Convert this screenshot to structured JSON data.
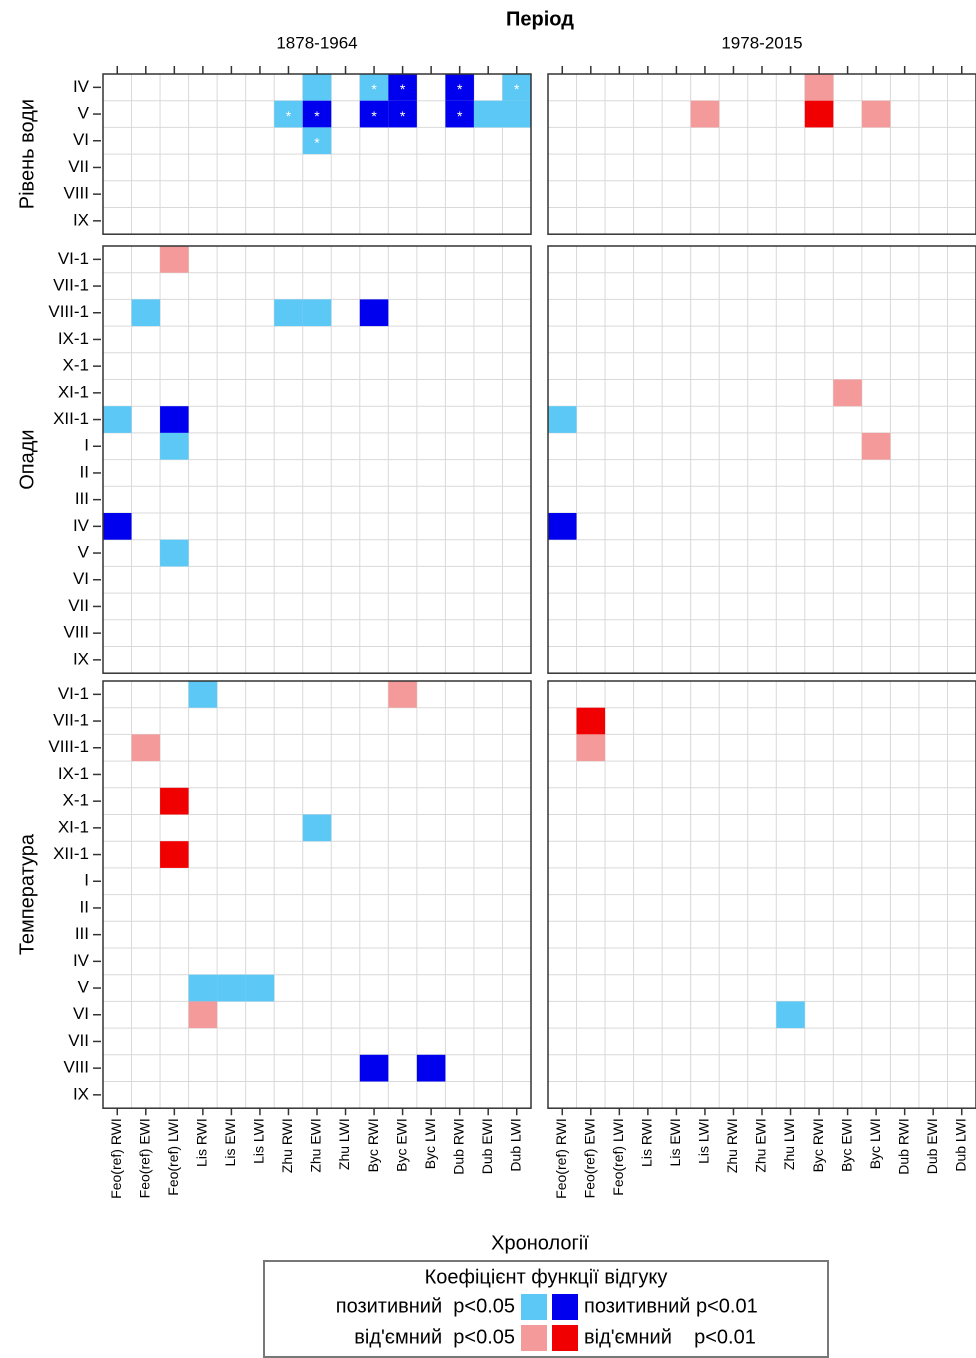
{
  "chart_data": {
    "type": "tile",
    "title": "Період",
    "x_label": "Хронології",
    "periods": [
      "1878-1964",
      "1978-2015"
    ],
    "columns": [
      "Feo(ref) RWI",
      "Feo(ref) EWI",
      "Feo(ref) LWI",
      "Lis RWI",
      "Lis EWI",
      "Lis LWI",
      "Zhu RWI",
      "Zhu EWI",
      "Zhu LWI",
      "Byc RWI",
      "Byc EWI",
      "Byc LWI",
      "Dub RWI",
      "Dub EWI",
      "Dub LWI"
    ],
    "grid": true,
    "facets": [
      {
        "name": "Рівень води",
        "rows": [
          "IV",
          "V",
          "VI",
          "VII",
          "VIII",
          "IX"
        ],
        "tiles": [
          [
            {
              "row": "IV",
              "col": "Zhu EWI",
              "color": "#5bc8f5"
            },
            {
              "row": "IV",
              "col": "Byc RWI",
              "color": "#5bc8f5",
              "star": "*"
            },
            {
              "row": "IV",
              "col": "Byc EWI",
              "color": "#0000ee",
              "star": "*"
            },
            {
              "row": "IV",
              "col": "Dub RWI",
              "color": "#0000ee",
              "star": "*"
            },
            {
              "row": "IV",
              "col": "Dub LWI",
              "color": "#5bc8f5",
              "star": "*"
            },
            {
              "row": "V",
              "col": "Zhu RWI",
              "color": "#5bc8f5",
              "star": "*"
            },
            {
              "row": "V",
              "col": "Zhu EWI",
              "color": "#0000ee",
              "star": "*"
            },
            {
              "row": "V",
              "col": "Byc RWI",
              "color": "#0000ee",
              "star": "*"
            },
            {
              "row": "V",
              "col": "Byc EWI",
              "color": "#0000ee",
              "star": "*"
            },
            {
              "row": "V",
              "col": "Dub RWI",
              "color": "#0000ee",
              "star": "*"
            },
            {
              "row": "V",
              "col": "Dub EWI",
              "color": "#5bc8f5"
            },
            {
              "row": "V",
              "col": "Dub LWI",
              "color": "#5bc8f5"
            },
            {
              "row": "VI",
              "col": "Zhu EWI",
              "color": "#5bc8f5",
              "star": "*"
            }
          ],
          [
            {
              "row": "IV",
              "col": "Byc RWI",
              "color": "#f59a9a"
            },
            {
              "row": "V",
              "col": "Lis LWI",
              "color": "#f59a9a"
            },
            {
              "row": "V",
              "col": "Byc RWI",
              "color": "#f00000"
            },
            {
              "row": "V",
              "col": "Byc LWI",
              "color": "#f59a9a"
            }
          ]
        ]
      },
      {
        "name": "Опади",
        "rows": [
          "VI-1",
          "VII-1",
          "VIII-1",
          "IX-1",
          "X-1",
          "XI-1",
          "XII-1",
          "I",
          "II",
          "III",
          "IV",
          "V",
          "VI",
          "VII",
          "VIII",
          "IX"
        ],
        "tiles": [
          [
            {
              "row": "VI-1",
              "col": "Feo(ref) LWI",
              "color": "#f59a9a"
            },
            {
              "row": "VIII-1",
              "col": "Feo(ref) EWI",
              "color": "#5bc8f5"
            },
            {
              "row": "VIII-1",
              "col": "Zhu RWI",
              "color": "#5bc8f5"
            },
            {
              "row": "VIII-1",
              "col": "Zhu EWI",
              "color": "#5bc8f5"
            },
            {
              "row": "VIII-1",
              "col": "Byc RWI",
              "color": "#0000ee"
            },
            {
              "row": "XII-1",
              "col": "Feo(ref) RWI",
              "color": "#5bc8f5"
            },
            {
              "row": "XII-1",
              "col": "Feo(ref) LWI",
              "color": "#0000ee"
            },
            {
              "row": "I",
              "col": "Feo(ref) LWI",
              "color": "#5bc8f5"
            },
            {
              "row": "IV",
              "col": "Feo(ref) RWI",
              "color": "#0000ee"
            },
            {
              "row": "V",
              "col": "Feo(ref) LWI",
              "color": "#5bc8f5"
            }
          ],
          [
            {
              "row": "XI-1",
              "col": "Byc EWI",
              "color": "#f59a9a"
            },
            {
              "row": "XII-1",
              "col": "Feo(ref) RWI",
              "color": "#5bc8f5"
            },
            {
              "row": "I",
              "col": "Byc LWI",
              "color": "#f59a9a"
            },
            {
              "row": "IV",
              "col": "Feo(ref) RWI",
              "color": "#0000ee"
            }
          ]
        ]
      },
      {
        "name": "Температура",
        "rows": [
          "VI-1",
          "VII-1",
          "VIII-1",
          "IX-1",
          "X-1",
          "XI-1",
          "XII-1",
          "I",
          "II",
          "III",
          "IV",
          "V",
          "VI",
          "VII",
          "VIII",
          "IX"
        ],
        "tiles": [
          [
            {
              "row": "VI-1",
              "col": "Lis RWI",
              "color": "#5bc8f5"
            },
            {
              "row": "VI-1",
              "col": "Byc EWI",
              "color": "#f59a9a"
            },
            {
              "row": "VIII-1",
              "col": "Feo(ref) EWI",
              "color": "#f59a9a"
            },
            {
              "row": "X-1",
              "col": "Feo(ref) LWI",
              "color": "#f00000"
            },
            {
              "row": "XI-1",
              "col": "Zhu EWI",
              "color": "#5bc8f5"
            },
            {
              "row": "XII-1",
              "col": "Feo(ref) LWI",
              "color": "#f00000"
            },
            {
              "row": "V",
              "col": "Lis RWI",
              "color": "#5bc8f5"
            },
            {
              "row": "V",
              "col": "Lis EWI",
              "color": "#5bc8f5"
            },
            {
              "row": "V",
              "col": "Lis LWI",
              "color": "#5bc8f5"
            },
            {
              "row": "VI",
              "col": "Lis RWI",
              "color": "#f59a9a"
            },
            {
              "row": "VIII",
              "col": "Byc RWI",
              "color": "#0000ee"
            },
            {
              "row": "VIII",
              "col": "Byc LWI",
              "color": "#0000ee"
            }
          ],
          [
            {
              "row": "VII-1",
              "col": "Feo(ref) EWI",
              "color": "#f00000"
            },
            {
              "row": "VIII-1",
              "col": "Feo(ref) EWI",
              "color": "#f59a9a"
            },
            {
              "row": "VI",
              "col": "Zhu LWI",
              "color": "#5bc8f5"
            }
          ]
        ]
      }
    ],
    "legend": {
      "title": "Коефіцієнт функції відгуку",
      "entries": [
        {
          "label": "позитивний  p<0.05",
          "color": "#5bc8f5"
        },
        {
          "label": "позитивний p<0.01",
          "color": "#0000ee"
        },
        {
          "label": "від'ємний  p<0.05",
          "color": "#f59a9a"
        },
        {
          "label": "від'ємний    p<0.01",
          "color": "#f00000"
        }
      ]
    }
  }
}
